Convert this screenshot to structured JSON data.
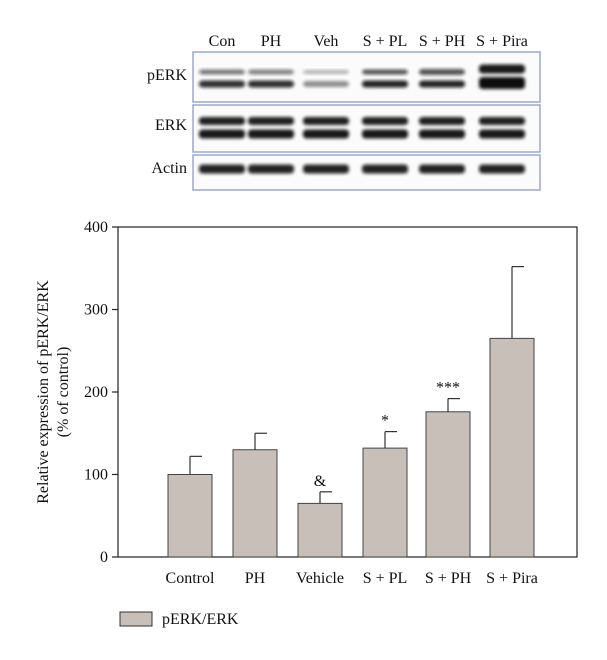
{
  "blot": {
    "lanes": [
      "Con",
      "PH",
      "Veh",
      "S + PL",
      "S + PH",
      "S + Pira"
    ],
    "rows": [
      "pERK",
      "ERK",
      "Actin"
    ]
  },
  "chart_data": {
    "type": "bar",
    "categories": [
      "Control",
      "PH",
      "Vehicle",
      "S + PL",
      "S + PH",
      "S + Pira"
    ],
    "series": [
      {
        "name": "pERK/ERK",
        "values": [
          100,
          130,
          65,
          132,
          176,
          265
        ],
        "errors": [
          22,
          20,
          14,
          20,
          16,
          87
        ],
        "annotations": [
          "",
          "",
          "&",
          "*",
          "***",
          ""
        ]
      }
    ],
    "ylabel": "Relative expression of pERK/ERK",
    "ylabel2": "(% of control)",
    "ylim": [
      0,
      400
    ],
    "yticks": [
      0,
      100,
      200,
      300,
      400
    ],
    "bar_color": "#c8bfb9",
    "grid": false,
    "legend": "bottom-left"
  }
}
